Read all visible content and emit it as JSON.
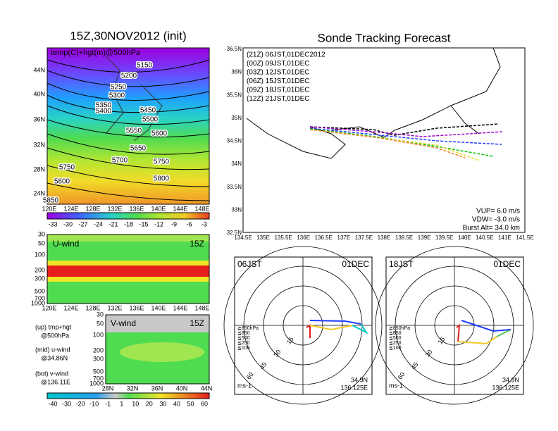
{
  "left_map": {
    "title": "15Z,30NOV2012 (init)",
    "label": "temp(C)+hgt(m)@500hPa",
    "lat_labels": [
      "44N",
      "40N",
      "36N",
      "32N",
      "28N",
      "24N"
    ],
    "lon_labels": [
      "120E",
      "124E",
      "128E",
      "132E",
      "136E",
      "140E",
      "144E",
      "148E"
    ],
    "contour_labels": [
      "5150",
      "5200",
      "5250",
      "5300",
      "5350",
      "5400",
      "5450",
      "5500",
      "5550",
      "5600",
      "5650",
      "5700",
      "5750",
      "5750",
      "5800",
      "5800",
      "5850"
    ],
    "colorbar_labels": [
      "-33",
      "-30",
      "-27",
      "-24",
      "-21",
      "-18",
      "-15",
      "-12",
      "-9",
      "-6",
      "-3"
    ]
  },
  "sonde_map": {
    "title": "Sonde Tracking Forecast",
    "lat_labels": [
      "36.5N",
      "36N",
      "35.5N",
      "35N",
      "34.5N",
      "34N",
      "33.5N",
      "33N",
      "32.5N"
    ],
    "lon_labels": [
      "134.5E",
      "135E",
      "135.5E",
      "136E",
      "136.5E",
      "137E",
      "137.5E",
      "138E",
      "138.5E",
      "139E",
      "139.5E",
      "140E",
      "140.5E",
      "141E",
      "141.5E"
    ],
    "legend": [
      "(21Z) 06JST,01DEC2012",
      "(00Z) 09JST,01DEC",
      "(03Z) 12JST,01DEC",
      "(06Z) 15JST,01DEC",
      "(09Z) 18JST,01DEC",
      "(12Z) 21JST,01DEC"
    ],
    "info": [
      "VUP= 6.0 m/s",
      "VDW= -3.0 m/s",
      "Burst Alt= 34.0 km"
    ]
  },
  "u_wind": {
    "label": "U-wind",
    "time": "15Z",
    "levels": [
      "30",
      "50",
      "100",
      "200",
      "300",
      "500",
      "700",
      "1000"
    ],
    "lon_labels": [
      "120E",
      "124E",
      "128E",
      "132E",
      "136E",
      "140E",
      "144E",
      "148E"
    ]
  },
  "v_wind": {
    "label": "V-wind",
    "time": "15Z",
    "levels": [
      "30",
      "50",
      "100",
      "200",
      "300",
      "500",
      "700",
      "1000"
    ],
    "lat_labels": [
      "28N",
      "32N",
      "36N",
      "40N",
      "44N"
    ],
    "colorbar_labels": [
      "-40",
      "-30",
      "-20",
      "-10",
      "-1",
      "1",
      "10",
      "20",
      "30",
      "40",
      "50",
      "60"
    ]
  },
  "notes": [
    "(up) tmp+hgt",
    "@500hPa",
    "(mid) u-wind",
    "@34.86N",
    "(bot) v-wind",
    "@136.11E"
  ],
  "hodographs": [
    {
      "time": "06JST",
      "date": "01DEC",
      "rings": [
        "15",
        "30",
        "45",
        "60"
      ],
      "levels": [
        "≧850hPa",
        "≦850",
        "≦500",
        "≦250",
        "≦100"
      ],
      "unit": "ms-1",
      "lat": "34.9N",
      "lon": "136.125E"
    },
    {
      "time": "18JST",
      "date": "01DEC",
      "rings": [
        "15",
        "30",
        "45",
        "60"
      ],
      "levels": [
        "≧850hPa",
        "≦850",
        "≦500",
        "≦250",
        "≦100"
      ],
      "unit": "ms-1",
      "lat": "34.9N",
      "lon": "136.125E"
    }
  ]
}
